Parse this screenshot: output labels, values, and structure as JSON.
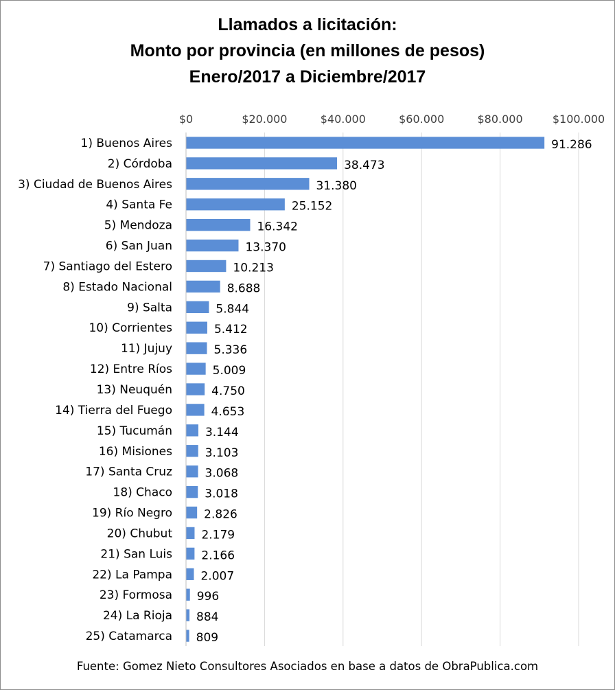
{
  "chart_data": {
    "type": "bar",
    "orientation": "horizontal",
    "title": [
      "Llamados a licitación:",
      "Monto por provincia (en millones de pesos)",
      "Enero/2017 a Diciembre/2017"
    ],
    "xlim": [
      0,
      100000
    ],
    "x_ticks": [
      0,
      20000,
      40000,
      60000,
      80000,
      100000
    ],
    "x_tick_labels": [
      "$0",
      "$20.000",
      "$40.000",
      "$60.000",
      "$80.000",
      "$100.000"
    ],
    "x_axis_position": "top",
    "grid": true,
    "legend": "none",
    "bar_color": "#5b8ed6",
    "categories": [
      "1) Buenos Aires",
      "2) Córdoba",
      "3) Ciudad de Buenos Aires",
      "4) Santa Fe",
      "5) Mendoza",
      "6) San Juan",
      "7) Santiago del Estero",
      "8) Estado Nacional",
      "9) Salta",
      "10) Corrientes",
      "11) Jujuy",
      "12) Entre Ríos",
      "13) Neuquén",
      "14) Tierra del Fuego",
      "15) Tucumán",
      "16) Misiones",
      "17) Santa Cruz",
      "18) Chaco",
      "19) Río Negro",
      "20) Chubut",
      "21) San Luis",
      "22) La Pampa",
      "23) Formosa",
      "24) La Rioja",
      "25) Catamarca"
    ],
    "values": [
      91286,
      38473,
      31380,
      25152,
      16342,
      13370,
      10213,
      8688,
      5844,
      5412,
      5336,
      5009,
      4750,
      4653,
      3144,
      3103,
      3068,
      3018,
      2826,
      2179,
      2166,
      2007,
      996,
      884,
      809
    ],
    "value_labels": [
      "91.286",
      "38.473",
      "31.380",
      "25.152",
      "16.342",
      "13.370",
      "10.213",
      "8.688",
      "5.844",
      "5.412",
      "5.336",
      "5.009",
      "4.750",
      "4.653",
      "3.144",
      "3.103",
      "3.068",
      "3.018",
      "2.826",
      "2.179",
      "2.166",
      "2.007",
      "996",
      "884",
      "809"
    ]
  },
  "source_note": "Fuente: Gomez Nieto Consultores Asociados en base a datos de ObraPublica.com"
}
